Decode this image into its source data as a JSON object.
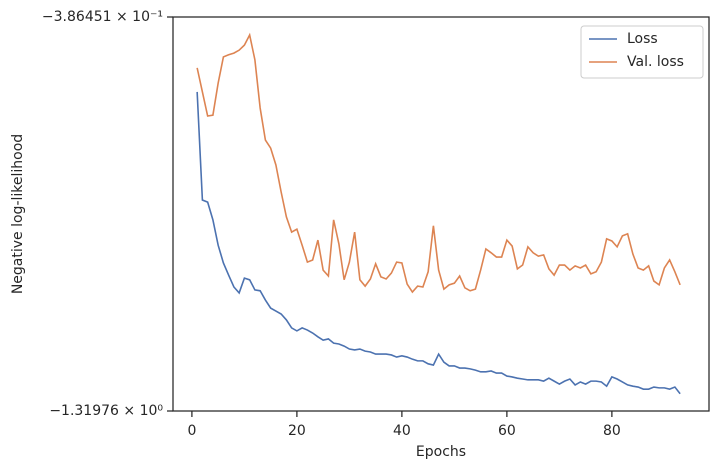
{
  "chart_data": {
    "type": "line",
    "xlabel": "Epochs",
    "ylabel": "Negative log-likelihood",
    "x": [
      1,
      2,
      3,
      4,
      5,
      6,
      7,
      8,
      9,
      10,
      11,
      12,
      13,
      14,
      15,
      16,
      17,
      18,
      19,
      20,
      21,
      22,
      23,
      24,
      25,
      26,
      27,
      28,
      29,
      30,
      31,
      32,
      33,
      34,
      35,
      36,
      37,
      38,
      39,
      40,
      41,
      42,
      43,
      44,
      45,
      46,
      47,
      48,
      49,
      50,
      51,
      52,
      53,
      54,
      55,
      56,
      57,
      58,
      59,
      60,
      61,
      62,
      63,
      64,
      65,
      66,
      67,
      68,
      69,
      70,
      71,
      72,
      73,
      74,
      75,
      76,
      77,
      78,
      79,
      80,
      81,
      82,
      83,
      84,
      85,
      86,
      87,
      88,
      89,
      90,
      91,
      92,
      93
    ],
    "series": [
      {
        "name": "Loss",
        "color": "#4c72b0",
        "values": [
          -0.564,
          -0.82,
          -0.825,
          -0.867,
          -0.927,
          -0.969,
          -0.998,
          -1.026,
          -1.04,
          -1.005,
          -1.009,
          -1.033,
          -1.035,
          -1.057,
          -1.076,
          -1.083,
          -1.09,
          -1.104,
          -1.123,
          -1.13,
          -1.123,
          -1.128,
          -1.135,
          -1.144,
          -1.152,
          -1.149,
          -1.159,
          -1.161,
          -1.166,
          -1.173,
          -1.175,
          -1.173,
          -1.178,
          -1.18,
          -1.185,
          -1.185,
          -1.185,
          -1.187,
          -1.192,
          -1.189,
          -1.192,
          -1.197,
          -1.201,
          -1.201,
          -1.208,
          -1.211,
          -1.185,
          -1.204,
          -1.213,
          -1.213,
          -1.218,
          -1.218,
          -1.22,
          -1.223,
          -1.227,
          -1.227,
          -1.225,
          -1.23,
          -1.23,
          -1.237,
          -1.239,
          -1.242,
          -1.244,
          -1.246,
          -1.246,
          -1.246,
          -1.249,
          -1.242,
          -1.249,
          -1.256,
          -1.249,
          -1.244,
          -1.258,
          -1.251,
          -1.256,
          -1.249,
          -1.249,
          -1.251,
          -1.261,
          -1.239,
          -1.244,
          -1.251,
          -1.258,
          -1.261,
          -1.263,
          -1.268,
          -1.268,
          -1.263,
          -1.265,
          -1.265,
          -1.268,
          -1.263,
          -1.279
        ]
      },
      {
        "name": "Val. loss",
        "color": "#dd8452",
        "values": [
          -0.507,
          -0.564,
          -0.621,
          -0.619,
          -0.543,
          -0.481,
          -0.476,
          -0.472,
          -0.465,
          -0.453,
          -0.429,
          -0.488,
          -0.602,
          -0.678,
          -0.697,
          -0.737,
          -0.801,
          -0.86,
          -0.896,
          -0.889,
          -0.927,
          -0.967,
          -0.962,
          -0.915,
          -0.986,
          -1.0,
          -0.867,
          -0.924,
          -1.009,
          -0.967,
          -0.896,
          -1.009,
          -1.024,
          -1.007,
          -0.971,
          -1.002,
          -1.007,
          -0.993,
          -0.967,
          -0.969,
          -1.019,
          -1.038,
          -1.024,
          -1.026,
          -0.99,
          -0.881,
          -0.986,
          -1.031,
          -1.021,
          -1.017,
          -1.0,
          -1.028,
          -1.035,
          -1.031,
          -0.986,
          -0.936,
          -0.945,
          -0.955,
          -0.955,
          -0.915,
          -0.929,
          -0.983,
          -0.974,
          -0.931,
          -0.945,
          -0.953,
          -0.95,
          -0.983,
          -0.998,
          -0.974,
          -0.974,
          -0.986,
          -0.976,
          -0.981,
          -0.974,
          -0.995,
          -0.99,
          -0.967,
          -0.912,
          -0.917,
          -0.931,
          -0.905,
          -0.9,
          -0.948,
          -0.981,
          -0.986,
          -0.976,
          -1.012,
          -1.021,
          -0.981,
          -0.962,
          -0.99,
          -1.021
        ]
      }
    ],
    "xlim": [
      -3.6,
      98.5
    ],
    "xticks": [
      0,
      20,
      40,
      60,
      80
    ],
    "ylim": [
      -1.31976,
      -0.386451
    ],
    "yticks": [
      {
        "value": -1.31976,
        "label": "−1.31976 × 10⁰"
      },
      {
        "value": -0.386451,
        "label": "−3.86451 × 10⁻¹"
      }
    ],
    "legend": "upper right",
    "grid": false
  }
}
